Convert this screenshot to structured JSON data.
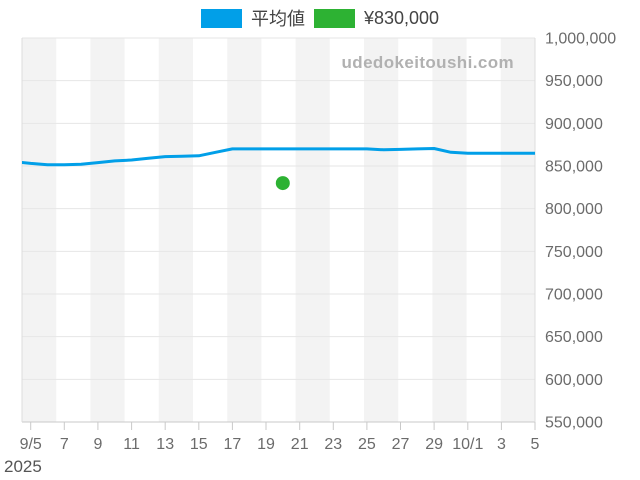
{
  "legend": {
    "items": [
      {
        "name": "average-series",
        "label": "平均値",
        "color": "#019FE8"
      },
      {
        "name": "price-point",
        "label": "¥830,000",
        "color": "#2DB233"
      }
    ]
  },
  "watermark": "udedokeitoushi.com",
  "chart_data": {
    "type": "line",
    "title": "",
    "xlabel": "",
    "ylabel": "",
    "legend_position": "top-center",
    "grid": "horizontal",
    "plot_bands_color": "#f3f3f3",
    "grid_color": "#e6e6e6",
    "axis_line_color": "#c9c9c9",
    "x_axis": {
      "year_label": "2025",
      "day_offset_from": "9/5",
      "tick_labels": [
        "9/5",
        "7",
        "9",
        "11",
        "13",
        "15",
        "17",
        "19",
        "21",
        "23",
        "25",
        "27",
        "29",
        "10/1",
        "3",
        "5"
      ],
      "tick_days": [
        0,
        2,
        4,
        6,
        8,
        10,
        12,
        14,
        16,
        18,
        20,
        22,
        24,
        26,
        28,
        30
      ]
    },
    "y_axis": {
      "min": 550000,
      "max": 1000000,
      "tick_step": 50000,
      "tick_labels": [
        "550,000",
        "600,000",
        "650,000",
        "700,000",
        "750,000",
        "800,000",
        "850,000",
        "900,000",
        "950,000",
        "1,000,000"
      ]
    },
    "series": [
      {
        "name": "平均値",
        "type": "line",
        "color": "#019FE8",
        "days": [
          -1,
          0,
          1,
          2,
          3,
          4,
          5,
          6,
          7,
          8,
          9,
          10,
          11,
          12,
          13,
          14,
          15,
          16,
          17,
          18,
          19,
          20,
          21,
          22,
          23,
          24,
          25,
          26,
          27,
          28,
          29,
          30
        ],
        "values": [
          855000,
          853000,
          851500,
          851500,
          852000,
          854000,
          856000,
          857000,
          859000,
          861000,
          861500,
          862000,
          866000,
          870000,
          870000,
          870000,
          870000,
          870000,
          870000,
          870000,
          870000,
          870000,
          869000,
          869500,
          870000,
          870500,
          866000,
          865000,
          865000,
          865000,
          865000,
          865000
        ]
      },
      {
        "name": "¥830,000",
        "type": "scatter",
        "color": "#2DB233",
        "points": [
          {
            "day": 15,
            "date": "9/20",
            "value": 830000
          }
        ]
      }
    ]
  }
}
